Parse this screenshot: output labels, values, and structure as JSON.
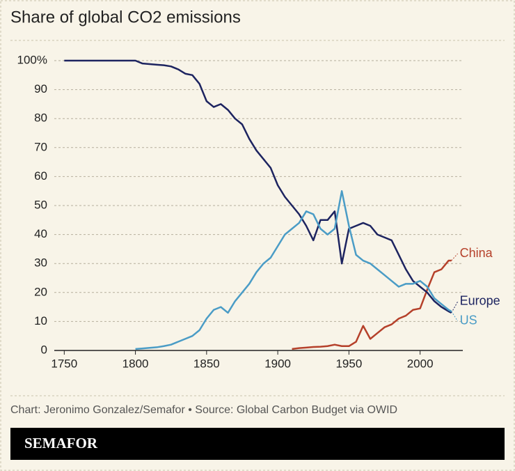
{
  "chart_data": {
    "type": "line",
    "title": "Share of global CO2 emissions",
    "source": "Chart: Jeronimo Gonzalez/Semafor • Source: Global Carbon Budget via OWID",
    "brand": "SEMAFOR",
    "x": [
      1750,
      1800,
      1805,
      1810,
      1815,
      1820,
      1825,
      1830,
      1835,
      1840,
      1845,
      1850,
      1855,
      1860,
      1865,
      1870,
      1875,
      1880,
      1885,
      1890,
      1895,
      1900,
      1905,
      1910,
      1915,
      1920,
      1925,
      1930,
      1935,
      1940,
      1945,
      1950,
      1955,
      1960,
      1965,
      1970,
      1975,
      1980,
      1985,
      1990,
      1995,
      2000,
      2005,
      2010,
      2015,
      2020,
      2022
    ],
    "series": [
      {
        "name": "China",
        "color": "#b5402a",
        "values": [
          null,
          null,
          null,
          null,
          null,
          null,
          null,
          null,
          null,
          null,
          null,
          null,
          null,
          null,
          null,
          null,
          null,
          null,
          null,
          null,
          null,
          null,
          null,
          0.5,
          0.8,
          1,
          1.2,
          1.3,
          1.5,
          2,
          1.5,
          1.5,
          3,
          8.5,
          4,
          6,
          8,
          9,
          11,
          12,
          14,
          14.5,
          21,
          27,
          28,
          31,
          31
        ]
      },
      {
        "name": "Europe",
        "color": "#1d2460",
        "values": [
          100,
          100,
          99,
          98.8,
          98.6,
          98.4,
          98,
          97,
          95.5,
          95,
          92,
          86,
          84,
          85,
          83,
          80,
          78,
          73,
          69,
          66,
          63,
          57,
          53,
          50,
          47,
          43,
          38,
          45,
          45,
          48,
          30,
          42,
          43,
          44,
          43,
          40,
          39,
          38,
          33,
          28,
          24,
          22,
          20,
          17,
          15,
          13.5,
          13
        ]
      },
      {
        "name": "US",
        "color": "#4a9cc6",
        "values": [
          null,
          0.5,
          0.7,
          0.9,
          1.1,
          1.5,
          2,
          3,
          4,
          5,
          7,
          11,
          14,
          15,
          13,
          17,
          20,
          23,
          27,
          30,
          32,
          36,
          40,
          42,
          44,
          48,
          47,
          42,
          40,
          42,
          55,
          43,
          33,
          31,
          30,
          28,
          26,
          24,
          22,
          23,
          23,
          24,
          22,
          18,
          16,
          14,
          13.5
        ]
      }
    ],
    "xlim": [
      1743,
      2030
    ],
    "xticks": [
      1750,
      1800,
      1850,
      1900,
      1950,
      2000
    ],
    "ylim": [
      0,
      100
    ],
    "yticks": [
      0,
      10,
      20,
      30,
      40,
      50,
      60,
      70,
      80,
      90,
      {
        "value": 100,
        "label": "100%"
      }
    ],
    "grid": true
  }
}
